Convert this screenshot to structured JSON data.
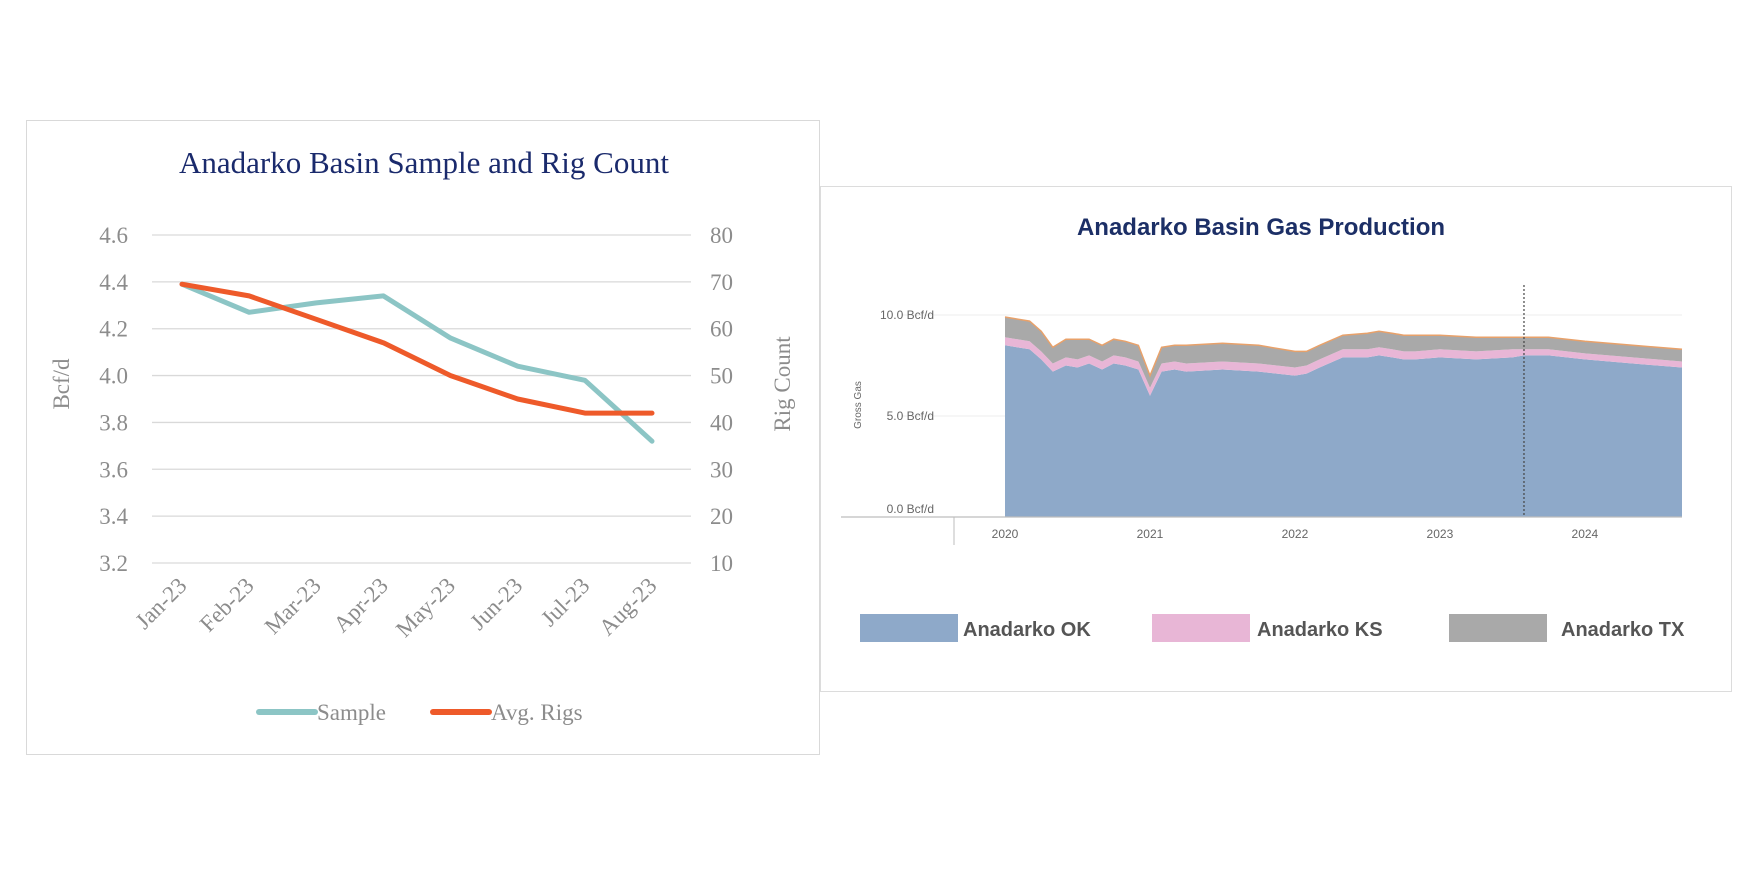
{
  "chart_data": [
    {
      "type": "line",
      "title": "Anadarko Basin Sample and Rig Count",
      "categories": [
        "Jan-23",
        "Feb-23",
        "Mar-23",
        "Apr-23",
        "May-23",
        "Jun-23",
        "Jul-23",
        "Aug-23"
      ],
      "ylabel": "Bcf/d",
      "y2label": "Rig Count",
      "ylim": [
        3.2,
        4.6
      ],
      "y2lim": [
        10,
        80
      ],
      "yticks": [
        "4.6",
        "4.4",
        "4.2",
        "4.0",
        "3.8",
        "3.6",
        "3.4",
        "3.2"
      ],
      "y2ticks": [
        "80",
        "70",
        "60",
        "50",
        "40",
        "30",
        "20",
        "10"
      ],
      "grid": true,
      "legend_position": "bottom",
      "series": [
        {
          "name": "Sample",
          "axis": "left",
          "color": "#8cc5c5",
          "values": [
            4.39,
            4.27,
            4.31,
            4.34,
            4.16,
            4.04,
            3.98,
            3.72
          ]
        },
        {
          "name": "Avg. Rigs",
          "axis": "right",
          "color": "#ee5a2a",
          "values": [
            69.5,
            67,
            62,
            57,
            50,
            45,
            42,
            42
          ]
        }
      ]
    },
    {
      "type": "area",
      "stacked": true,
      "title": "Anadarko Basin Gas Production",
      "ylabel": "Gross Gas",
      "ylim": [
        0,
        10
      ],
      "yticks": [
        "10.0 Bcf/d",
        "5.0 Bcf/d",
        "0.0 Bcf/d"
      ],
      "ytick_values": [
        10,
        5,
        0
      ],
      "xticks": [
        "2020",
        "2021",
        "2022",
        "2023",
        "2024"
      ],
      "xtick_values": [
        2020,
        2021,
        2022,
        2023,
        2024
      ],
      "xlim": [
        2020.0,
        2024.67
      ],
      "forecast_marker": 2023.58,
      "legend_position": "bottom",
      "x": [
        2020.0,
        2020.17,
        2020.25,
        2020.33,
        2020.42,
        2020.5,
        2020.58,
        2020.67,
        2020.75,
        2020.83,
        2020.92,
        2021.0,
        2021.08,
        2021.17,
        2021.25,
        2021.5,
        2021.75,
        2022.0,
        2022.08,
        2022.17,
        2022.33,
        2022.5,
        2022.58,
        2022.67,
        2022.75,
        2022.83,
        2023.0,
        2023.25,
        2023.5,
        2023.58,
        2023.75,
        2024.0,
        2024.33,
        2024.67
      ],
      "series": [
        {
          "name": "Anadarko OK",
          "color": "#8ea9c9",
          "values": [
            8.5,
            8.3,
            7.8,
            7.2,
            7.5,
            7.4,
            7.6,
            7.3,
            7.6,
            7.5,
            7.3,
            6.0,
            7.2,
            7.3,
            7.2,
            7.3,
            7.2,
            7.0,
            7.1,
            7.4,
            7.9,
            7.9,
            8.0,
            7.9,
            7.8,
            7.8,
            7.9,
            7.8,
            7.9,
            8.0,
            8.0,
            7.8,
            7.6,
            7.4
          ]
        },
        {
          "name": "Anadarko KS",
          "color": "#e8b6d6",
          "values": [
            0.4,
            0.4,
            0.4,
            0.4,
            0.4,
            0.4,
            0.4,
            0.4,
            0.4,
            0.4,
            0.4,
            0.4,
            0.4,
            0.4,
            0.4,
            0.4,
            0.4,
            0.4,
            0.4,
            0.4,
            0.4,
            0.4,
            0.4,
            0.4,
            0.4,
            0.4,
            0.4,
            0.4,
            0.4,
            0.3,
            0.3,
            0.3,
            0.3,
            0.3
          ]
        },
        {
          "name": "Anadarko TX",
          "color": "#a9a9a9",
          "values": [
            1.0,
            1.0,
            1.0,
            0.8,
            0.9,
            1.0,
            0.8,
            0.8,
            0.8,
            0.8,
            0.8,
            0.6,
            0.8,
            0.8,
            0.9,
            0.9,
            0.9,
            0.8,
            0.7,
            0.7,
            0.7,
            0.8,
            0.8,
            0.8,
            0.8,
            0.8,
            0.7,
            0.7,
            0.6,
            0.6,
            0.6,
            0.6,
            0.6,
            0.6
          ]
        }
      ]
    }
  ]
}
